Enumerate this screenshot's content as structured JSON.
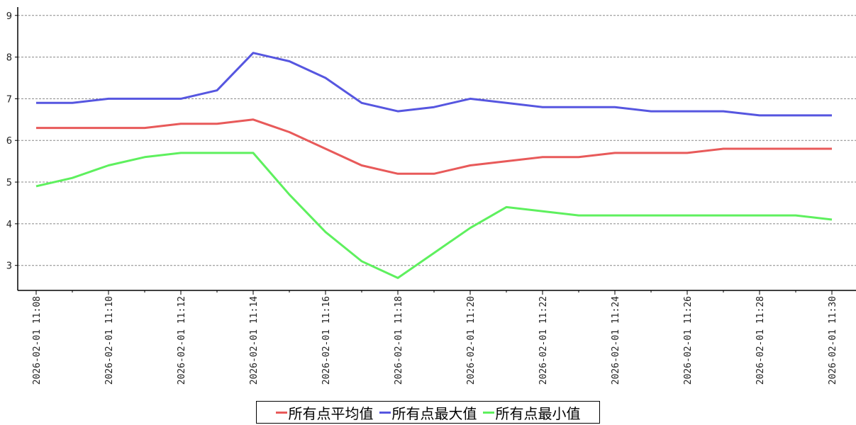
{
  "chart_data": {
    "type": "line",
    "title": "",
    "xlabel": "",
    "ylabel": "",
    "ylim": [
      2.4,
      9.2
    ],
    "yticks": [
      3,
      4,
      5,
      6,
      7,
      8,
      9
    ],
    "grid": "horizontal-dashed",
    "legend_position": "bottom-center",
    "x": [
      "2026-02-01 11:08",
      "2026-02-01 11:09",
      "2026-02-01 11:10",
      "2026-02-01 11:11",
      "2026-02-01 11:12",
      "2026-02-01 11:13",
      "2026-02-01 11:14",
      "2026-02-01 11:15",
      "2026-02-01 11:16",
      "2026-02-01 11:17",
      "2026-02-01 11:18",
      "2026-02-01 11:19",
      "2026-02-01 11:20",
      "2026-02-01 11:21",
      "2026-02-01 11:22",
      "2026-02-01 11:23",
      "2026-02-01 11:24",
      "2026-02-01 11:25",
      "2026-02-01 11:26",
      "2026-02-01 11:27",
      "2026-02-01 11:28",
      "2026-02-01 11:29",
      "2026-02-01 11:30"
    ],
    "xtick_labels": [
      "2026-02-01 11:08",
      "2026-02-01 11:10",
      "2026-02-01 11:12",
      "2026-02-01 11:14",
      "2026-02-01 11:16",
      "2026-02-01 11:18",
      "2026-02-01 11:20",
      "2026-02-01 11:22",
      "2026-02-01 11:24",
      "2026-02-01 11:26",
      "2026-02-01 11:28",
      "2026-02-01 11:30"
    ],
    "series": [
      {
        "name": "所有点平均值",
        "color": "#e85a5a",
        "values": [
          6.3,
          6.3,
          6.3,
          6.3,
          6.4,
          6.4,
          6.5,
          6.2,
          5.8,
          5.4,
          5.2,
          5.2,
          5.4,
          5.5,
          5.6,
          5.6,
          5.7,
          5.7,
          5.7,
          5.8,
          5.8,
          5.8,
          5.8
        ]
      },
      {
        "name": "所有点最大值",
        "color": "#5656e0",
        "values": [
          6.9,
          6.9,
          7.0,
          7.0,
          7.0,
          7.2,
          8.1,
          7.9,
          7.5,
          6.9,
          6.7,
          6.8,
          7.0,
          6.9,
          6.8,
          6.8,
          6.8,
          6.7,
          6.7,
          6.7,
          6.6,
          6.6,
          6.6
        ]
      },
      {
        "name": "所有点最小值",
        "color": "#5ef05e",
        "values": [
          4.9,
          5.1,
          5.4,
          5.6,
          5.7,
          5.7,
          5.7,
          4.7,
          3.8,
          3.1,
          2.7,
          3.3,
          3.9,
          4.4,
          4.3,
          4.2,
          4.2,
          4.2,
          4.2,
          4.2,
          4.2,
          4.2,
          4.1
        ]
      }
    ]
  }
}
